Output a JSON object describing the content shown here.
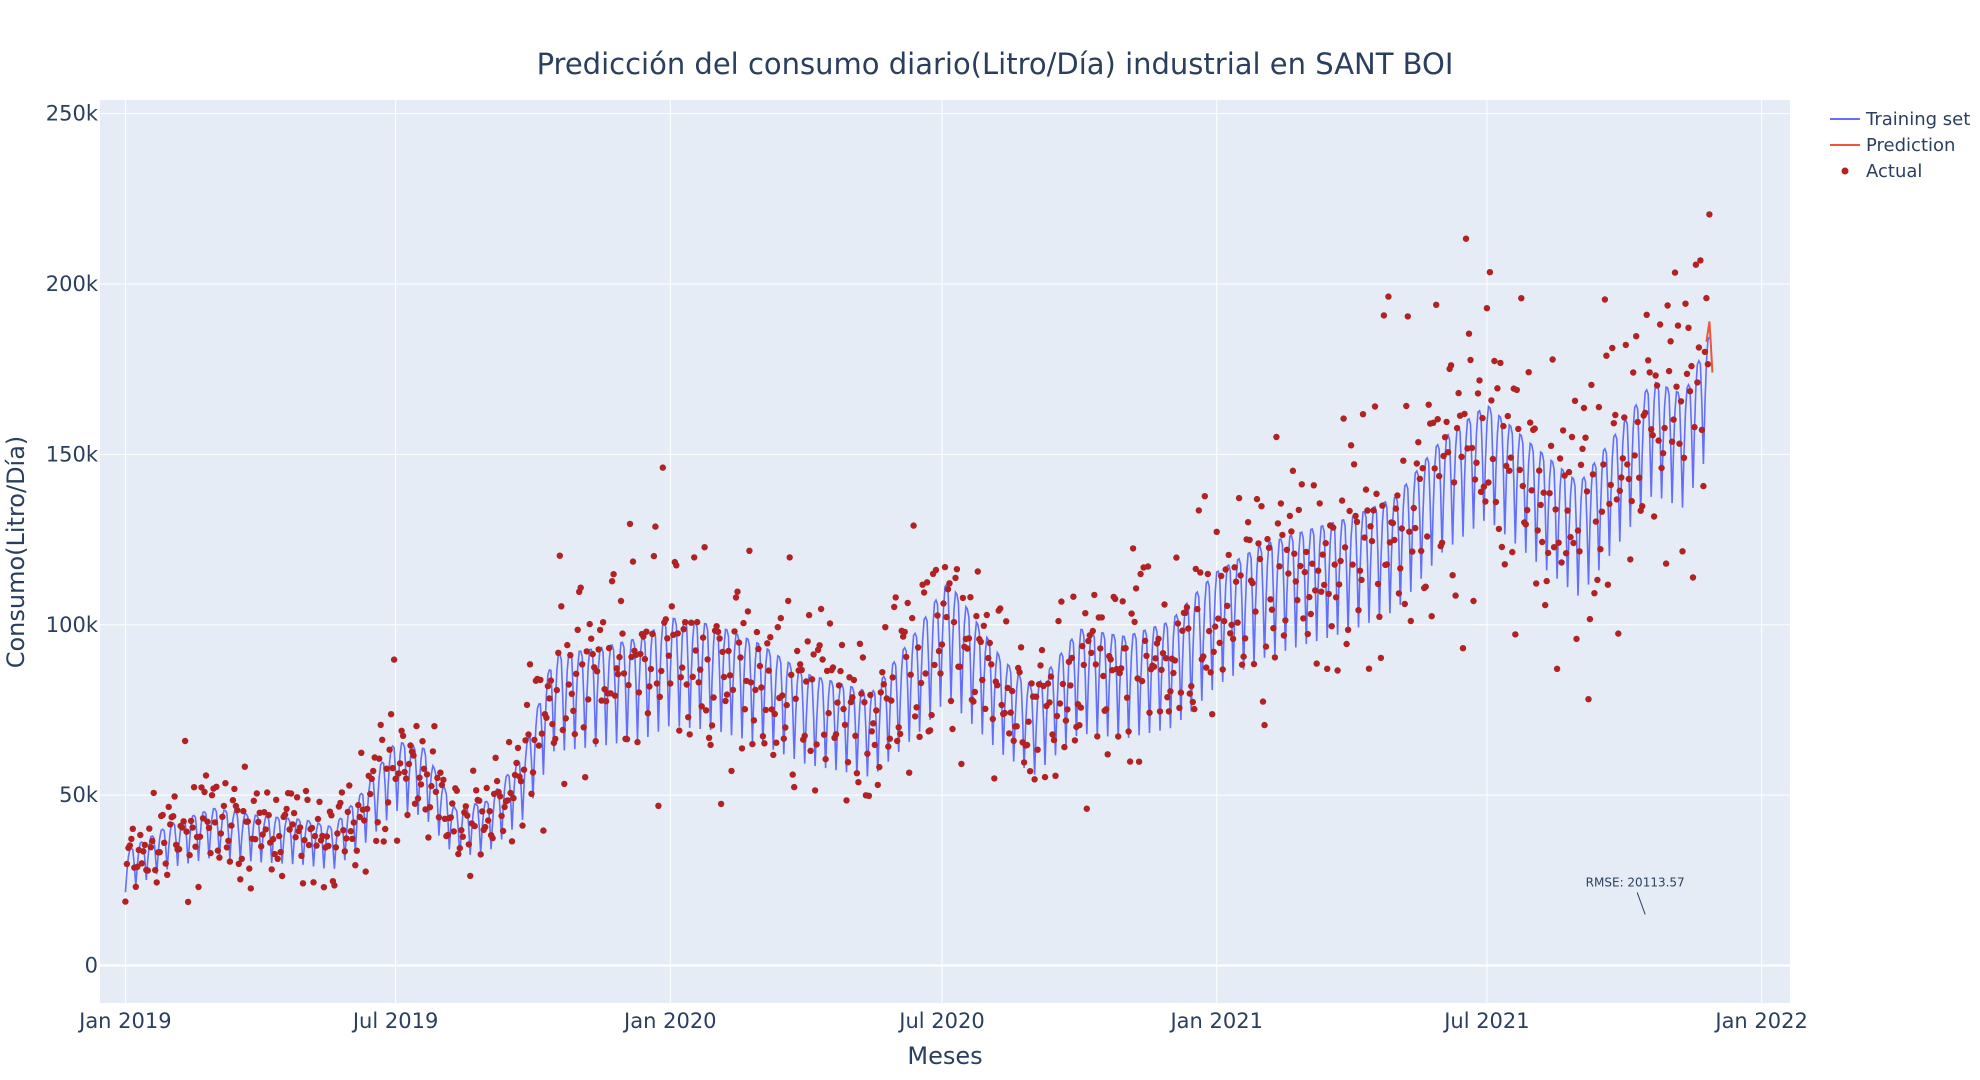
{
  "chart_data": {
    "type": "line",
    "title": "Predicción del consumo diario(Litro/Día) industrial en SANT BOI",
    "xlabel": "Meses",
    "ylabel": "Consumo(Litro/Día)",
    "x_range": [
      "2018-12-15",
      "2022-01-20"
    ],
    "ylim": [
      -11000,
      254000
    ],
    "x_ticks": [
      {
        "date": "2019-01-01",
        "label": "Jan 2019"
      },
      {
        "date": "2019-07-01",
        "label": "Jul 2019"
      },
      {
        "date": "2020-01-01",
        "label": "Jan 2020"
      },
      {
        "date": "2020-07-01",
        "label": "Jul 2020"
      },
      {
        "date": "2021-01-01",
        "label": "Jan 2021"
      },
      {
        "date": "2021-07-01",
        "label": "Jul 2021"
      },
      {
        "date": "2022-01-01",
        "label": "Jan 2022"
      }
    ],
    "y_ticks": [
      {
        "value": 0,
        "label": "0"
      },
      {
        "value": 50000,
        "label": "50k"
      },
      {
        "value": 100000,
        "label": "100k"
      },
      {
        "value": 150000,
        "label": "150k"
      },
      {
        "value": 200000,
        "label": "200k"
      },
      {
        "value": 250000,
        "label": "250k"
      }
    ],
    "grid": true,
    "legend_position": "top-right",
    "training": {
      "name": "Training set",
      "color": "#636efa",
      "start": "2019-01-01",
      "end": "2021-11-27",
      "weekly_amplitude": 27000,
      "baseline": [
        [
          "2019-01-01",
          30000
        ],
        [
          "2019-02-01",
          38000
        ],
        [
          "2019-03-01",
          42000
        ],
        [
          "2019-04-01",
          40000
        ],
        [
          "2019-05-01",
          39000
        ],
        [
          "2019-05-20",
          37000
        ],
        [
          "2019-06-10",
          47000
        ],
        [
          "2019-07-01",
          60000
        ],
        [
          "2019-07-20",
          58000
        ],
        [
          "2019-08-10",
          42000
        ],
        [
          "2019-09-01",
          44000
        ],
        [
          "2019-09-25",
          57000
        ],
        [
          "2019-10-15",
          83000
        ],
        [
          "2019-11-15",
          85000
        ],
        [
          "2019-12-15",
          88000
        ],
        [
          "2020-01-01",
          93000
        ],
        [
          "2020-02-01",
          91000
        ],
        [
          "2020-03-01",
          86000
        ],
        [
          "2020-04-01",
          78000
        ],
        [
          "2020-05-15",
          73000
        ],
        [
          "2020-06-15",
          90000
        ],
        [
          "2020-07-05",
          103000
        ],
        [
          "2020-08-10",
          82000
        ],
        [
          "2020-09-01",
          74000
        ],
        [
          "2020-10-01",
          90000
        ],
        [
          "2020-11-01",
          88000
        ],
        [
          "2020-12-01",
          92000
        ],
        [
          "2021-01-01",
          106000
        ],
        [
          "2021-02-01",
          114000
        ],
        [
          "2021-03-01",
          118000
        ],
        [
          "2021-04-01",
          122000
        ],
        [
          "2021-05-01",
          128000
        ],
        [
          "2021-06-01",
          145000
        ],
        [
          "2021-07-01",
          155000
        ],
        [
          "2021-08-01",
          143000
        ],
        [
          "2021-09-01",
          132000
        ],
        [
          "2021-10-01",
          150000
        ],
        [
          "2021-10-20",
          162000
        ],
        [
          "2021-11-10",
          158000
        ],
        [
          "2021-11-27",
          175000
        ]
      ]
    },
    "prediction": {
      "name": "Prediction",
      "color": "#ef553b",
      "x": [
        "2021-11-25",
        "2021-11-26",
        "2021-11-27",
        "2021-11-28",
        "2021-11-29"
      ],
      "y": [
        183000,
        186000,
        189000,
        182000,
        174000
      ]
    },
    "actual": {
      "name": "Actual",
      "color": "#b22222",
      "scatter": 0.18
    },
    "annotation": {
      "text": "RMSE: 20113.57",
      "x": "2021-10-15",
      "y": 15000
    }
  }
}
